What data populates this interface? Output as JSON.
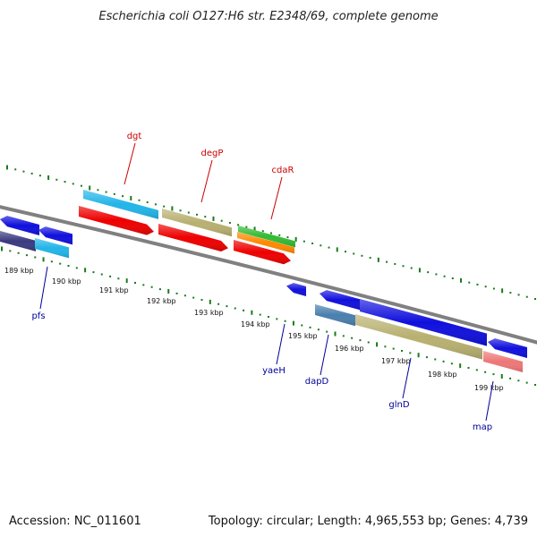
{
  "title": "Escherichia coli O127:H6 str. E2348/69, complete genome",
  "footer": {
    "accession": "Accession: NC_011601",
    "summary": "Topology: circular; Length: 4,965,553 bp; Genes: 4,739"
  },
  "colors": {
    "backbone": "#808080",
    "tick": "#1a7a1a",
    "top_label": "#cc0000",
    "bottom_label": "#000099",
    "blue": "#1010dd",
    "cyan": "#22b5e8",
    "khaki": "#b8b070",
    "red": "#ee0000",
    "green": "#33bb33",
    "orange": "#ff8800",
    "steel": "#4a7fae",
    "purple": "#3a3a80",
    "salmon": "#ee7777"
  },
  "scale_labels": [
    "189 kbp",
    "190 kbp",
    "191 kbp",
    "192 kbp",
    "193 kbp",
    "194 kbp",
    "195 kbp",
    "196 kbp",
    "197 kbp",
    "198 kbp",
    "199 kbp"
  ],
  "top_genes": [
    "dgt",
    "degP",
    "cdaR"
  ],
  "bottom_genes": [
    "pfs",
    "yaeH",
    "dapD",
    "glnD",
    "map"
  ]
}
